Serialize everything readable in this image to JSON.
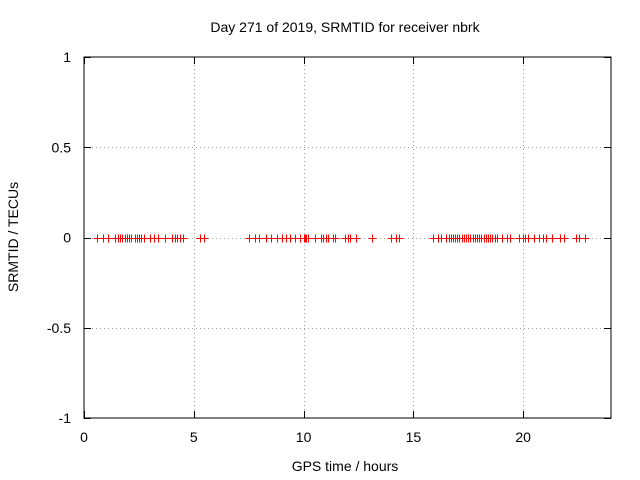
{
  "chart_data": {
    "type": "scatter",
    "title": "Day 271 of 2019, SRMTID for receiver nbrk",
    "xlabel": "GPS time / hours",
    "ylabel": "SRMTID / TECUs",
    "xlim": [
      0,
      24
    ],
    "ylim": [
      -1,
      1
    ],
    "xticks": [
      0,
      5,
      10,
      15,
      20
    ],
    "xtick_labels": [
      "0",
      "5",
      "10",
      "15",
      "20"
    ],
    "yticks": [
      -1,
      -0.5,
      0,
      0.5,
      1
    ],
    "ytick_labels": [
      "-1",
      "-0.5",
      "0",
      "0.5",
      "1"
    ],
    "grid": true,
    "marker": "+",
    "color": "#ff0000",
    "series": [
      {
        "name": "SRMTID",
        "x": [
          0.6,
          0.85,
          1.1,
          1.4,
          1.55,
          1.65,
          1.75,
          1.85,
          1.95,
          2.05,
          2.15,
          2.3,
          2.4,
          2.5,
          2.6,
          2.75,
          3.0,
          3.2,
          3.35,
          3.7,
          4.0,
          4.15,
          4.25,
          4.35,
          4.5,
          5.3,
          5.45,
          7.5,
          7.8,
          7.95,
          8.3,
          8.5,
          8.8,
          9.0,
          9.2,
          9.4,
          9.6,
          9.85,
          10.0,
          10.05,
          10.1,
          10.2,
          10.5,
          10.8,
          10.9,
          11.0,
          11.1,
          11.35,
          11.45,
          11.9,
          12.0,
          12.1,
          12.4,
          13.1,
          14.0,
          14.2,
          14.35,
          15.9,
          16.1,
          16.25,
          16.5,
          16.6,
          16.7,
          16.8,
          16.9,
          17.0,
          17.1,
          17.2,
          17.3,
          17.4,
          17.5,
          17.6,
          17.7,
          17.8,
          17.9,
          18.0,
          18.1,
          18.2,
          18.3,
          18.4,
          18.5,
          18.6,
          18.7,
          18.8,
          19.05,
          19.25,
          19.4,
          19.8,
          20.0,
          20.1,
          20.2,
          20.5,
          20.7,
          20.9,
          21.05,
          21.3,
          21.7,
          21.85,
          22.4,
          22.55,
          22.8
        ],
        "y": [
          0,
          0,
          0,
          0,
          0,
          0,
          0,
          0,
          0,
          0,
          0,
          0,
          0,
          0,
          0,
          0,
          0,
          0,
          0,
          0,
          0,
          0,
          0,
          0,
          0,
          0,
          0,
          0,
          0,
          0,
          0,
          0,
          0,
          0,
          0,
          0,
          0,
          0,
          0,
          0,
          0,
          0,
          0,
          0,
          0,
          0,
          0,
          0,
          0,
          0,
          0,
          0,
          0,
          0,
          0,
          0,
          0,
          0,
          0,
          0,
          0,
          0,
          0,
          0,
          0,
          0,
          0,
          0,
          0,
          0,
          0,
          0,
          0,
          0,
          0,
          0,
          0,
          0,
          0,
          0,
          0,
          0,
          0,
          0,
          0,
          0,
          0,
          0,
          0,
          0,
          0,
          0,
          0,
          0,
          0,
          0,
          0,
          0,
          0,
          0,
          0
        ]
      }
    ]
  }
}
